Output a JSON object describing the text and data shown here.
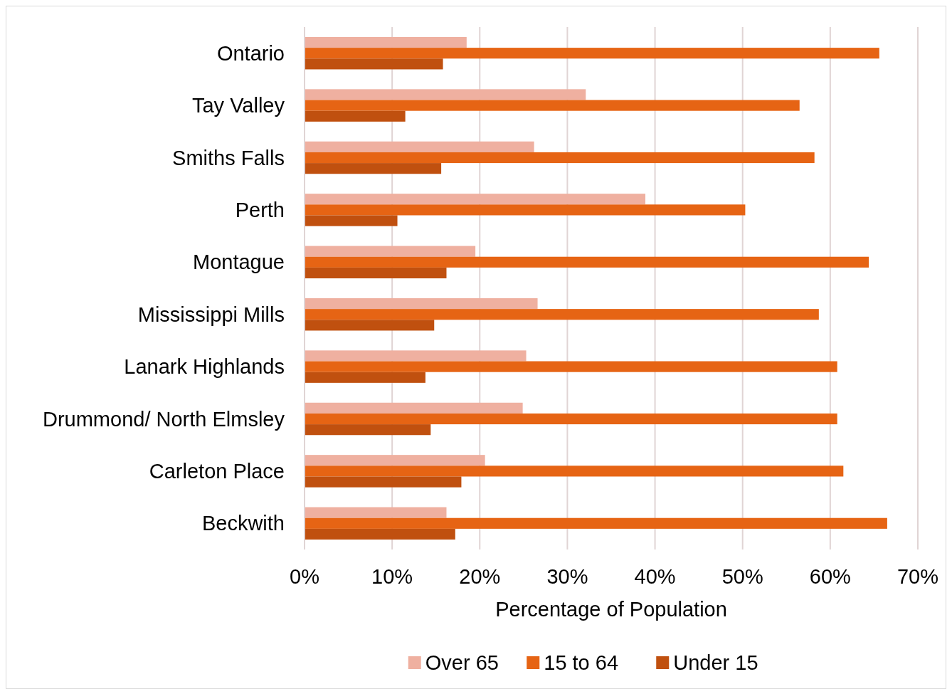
{
  "chart_data": {
    "type": "bar",
    "orientation": "horizontal",
    "xlabel": "Percentage of Population",
    "categories": [
      "Ontario",
      "Tay Valley",
      "Smiths Falls",
      "Perth",
      "Montague",
      "Mississippi Mills",
      "Lanark Highlands",
      "Drummond/ North Elmsley",
      "Carleton Place",
      "Beckwith"
    ],
    "series": [
      {
        "name": "Over 65",
        "color": "#efb0a0",
        "values": [
          18.5,
          32.1,
          26.2,
          38.9,
          19.5,
          26.6,
          25.3,
          24.9,
          20.6,
          16.2
        ]
      },
      {
        "name": "15 to 64",
        "color": "#e66414",
        "values": [
          65.6,
          56.5,
          58.2,
          50.3,
          64.4,
          58.7,
          60.8,
          60.8,
          61.5,
          66.5
        ]
      },
      {
        "name": "Under 15",
        "color": "#c0500f",
        "values": [
          15.8,
          11.5,
          15.6,
          10.6,
          16.2,
          14.8,
          13.8,
          14.4,
          17.9,
          17.2
        ]
      }
    ],
    "xlim": [
      0,
      70
    ],
    "xticks": [
      {
        "value": 0,
        "label": "0%"
      },
      {
        "value": 10,
        "label": "10%"
      },
      {
        "value": 20,
        "label": "20%"
      },
      {
        "value": 30,
        "label": "30%"
      },
      {
        "value": 40,
        "label": "40%"
      },
      {
        "value": 50,
        "label": "50%"
      },
      {
        "value": 60,
        "label": "60%"
      },
      {
        "value": 70,
        "label": "70%"
      }
    ],
    "grid": "x",
    "legend": "bottom"
  }
}
